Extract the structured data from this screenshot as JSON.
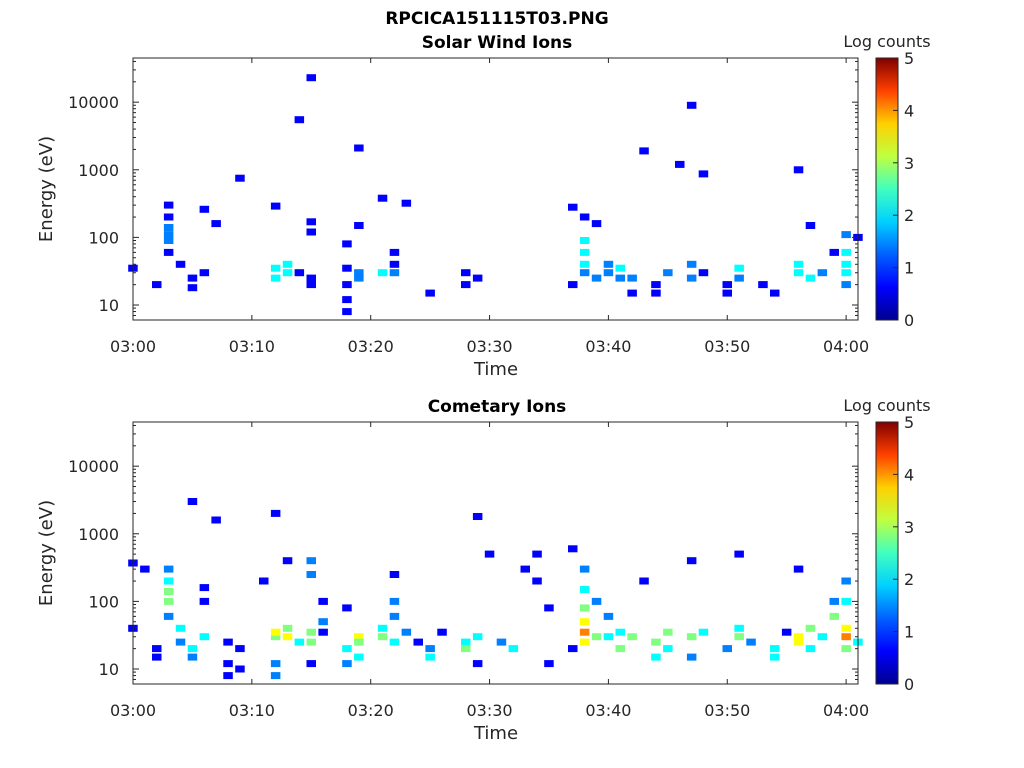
{
  "figure_title": "RPCICA151115T03.PNG",
  "colormap": [
    "#00008f",
    "#0000ff",
    "#0080ff",
    "#00ffff",
    "#80ff80",
    "#ffff00",
    "#ff8000",
    "#ff0000",
    "#800000"
  ],
  "chart_data": [
    {
      "type": "heatmap",
      "title": "Solar Wind Ions",
      "xlabel": "Time",
      "ylabel": "Energy (eV)",
      "xlim": [
        "03:00",
        "04:01"
      ],
      "ylim": [
        6,
        45000
      ],
      "yscale": "log",
      "xticks": [
        "03:00",
        "03:10",
        "03:20",
        "03:30",
        "03:40",
        "03:50",
        "04:00"
      ],
      "yticks": [
        "10",
        "100",
        "1000",
        "10000"
      ],
      "colorbar": {
        "label": "Log counts",
        "range": [
          0,
          5
        ],
        "ticks": [
          "0",
          "1",
          "2",
          "3",
          "4",
          "5"
        ]
      },
      "cells": [
        {
          "t": "03:00",
          "e": 35,
          "v": 0.5
        },
        {
          "t": "03:02",
          "e": 20,
          "v": 0.5
        },
        {
          "t": "03:03",
          "e": 300,
          "v": 0.6
        },
        {
          "t": "03:03",
          "e": 200,
          "v": 0.8
        },
        {
          "t": "03:03",
          "e": 140,
          "v": 1.5
        },
        {
          "t": "03:03",
          "e": 110,
          "v": 1.4
        },
        {
          "t": "03:03",
          "e": 90,
          "v": 1.0
        },
        {
          "t": "03:03",
          "e": 60,
          "v": 0.6
        },
        {
          "t": "03:04",
          "e": 40,
          "v": 0.5
        },
        {
          "t": "03:05",
          "e": 25,
          "v": 0.5
        },
        {
          "t": "03:05",
          "e": 18,
          "v": 0.5
        },
        {
          "t": "03:06",
          "e": 30,
          "v": 0.6
        },
        {
          "t": "03:06",
          "e": 260,
          "v": 0.5
        },
        {
          "t": "03:07",
          "e": 160,
          "v": 0.5
        },
        {
          "t": "03:09",
          "e": 750,
          "v": 0.5
        },
        {
          "t": "03:12",
          "e": 290,
          "v": 0.5
        },
        {
          "t": "03:12",
          "e": 25,
          "v": 1.6
        },
        {
          "t": "03:12",
          "e": 35,
          "v": 1.8
        },
        {
          "t": "03:13",
          "e": 30,
          "v": 2.0
        },
        {
          "t": "03:13",
          "e": 40,
          "v": 1.7
        },
        {
          "t": "03:14",
          "e": 5500,
          "v": 0.5
        },
        {
          "t": "03:14",
          "e": 30,
          "v": 0.8
        },
        {
          "t": "03:15",
          "e": 23000,
          "v": 0.5
        },
        {
          "t": "03:15",
          "e": 170,
          "v": 0.6
        },
        {
          "t": "03:15",
          "e": 120,
          "v": 0.5
        },
        {
          "t": "03:15",
          "e": 25,
          "v": 0.7
        },
        {
          "t": "03:15",
          "e": 20,
          "v": 0.5
        },
        {
          "t": "03:18",
          "e": 80,
          "v": 0.5
        },
        {
          "t": "03:18",
          "e": 35,
          "v": 0.6
        },
        {
          "t": "03:18",
          "e": 20,
          "v": 0.5
        },
        {
          "t": "03:18",
          "e": 12,
          "v": 0.5
        },
        {
          "t": "03:18",
          "e": 8,
          "v": 0.5
        },
        {
          "t": "03:19",
          "e": 30,
          "v": 1.4
        },
        {
          "t": "03:19",
          "e": 25,
          "v": 1.2
        },
        {
          "t": "03:19",
          "e": 150,
          "v": 0.5
        },
        {
          "t": "03:19",
          "e": 2100,
          "v": 0.5
        },
        {
          "t": "03:21",
          "e": 30,
          "v": 1.7
        },
        {
          "t": "03:21",
          "e": 380,
          "v": 0.5
        },
        {
          "t": "03:22",
          "e": 30,
          "v": 1.2
        },
        {
          "t": "03:22",
          "e": 60,
          "v": 0.5
        },
        {
          "t": "03:22",
          "e": 40,
          "v": 0.8
        },
        {
          "t": "03:23",
          "e": 320,
          "v": 0.5
        },
        {
          "t": "03:25",
          "e": 15,
          "v": 0.5
        },
        {
          "t": "03:28",
          "e": 30,
          "v": 0.5
        },
        {
          "t": "03:28",
          "e": 20,
          "v": 0.8
        },
        {
          "t": "03:29",
          "e": 25,
          "v": 0.6
        },
        {
          "t": "03:37",
          "e": 20,
          "v": 0.5
        },
        {
          "t": "03:37",
          "e": 280,
          "v": 0.6
        },
        {
          "t": "03:38",
          "e": 200,
          "v": 0.6
        },
        {
          "t": "03:38",
          "e": 90,
          "v": 1.6
        },
        {
          "t": "03:38",
          "e": 60,
          "v": 1.8
        },
        {
          "t": "03:38",
          "e": 40,
          "v": 2.0
        },
        {
          "t": "03:38",
          "e": 30,
          "v": 1.4
        },
        {
          "t": "03:39",
          "e": 160,
          "v": 0.5
        },
        {
          "t": "03:39",
          "e": 25,
          "v": 1.0
        },
        {
          "t": "03:40",
          "e": 40,
          "v": 1.4
        },
        {
          "t": "03:40",
          "e": 30,
          "v": 1.3
        },
        {
          "t": "03:41",
          "e": 35,
          "v": 1.8
        },
        {
          "t": "03:41",
          "e": 25,
          "v": 1.4
        },
        {
          "t": "03:42",
          "e": 25,
          "v": 1.0
        },
        {
          "t": "03:42",
          "e": 15,
          "v": 0.6
        },
        {
          "t": "03:43",
          "e": 1900,
          "v": 0.5
        },
        {
          "t": "03:44",
          "e": 20,
          "v": 0.8
        },
        {
          "t": "03:44",
          "e": 15,
          "v": 0.5
        },
        {
          "t": "03:45",
          "e": 30,
          "v": 1.2
        },
        {
          "t": "03:46",
          "e": 1200,
          "v": 0.5
        },
        {
          "t": "03:47",
          "e": 9000,
          "v": 0.5
        },
        {
          "t": "03:47",
          "e": 40,
          "v": 1.2
        },
        {
          "t": "03:47",
          "e": 25,
          "v": 1.0
        },
        {
          "t": "03:48",
          "e": 870,
          "v": 0.5
        },
        {
          "t": "03:48",
          "e": 30,
          "v": 0.7
        },
        {
          "t": "03:50",
          "e": 20,
          "v": 0.5
        },
        {
          "t": "03:50",
          "e": 15,
          "v": 0.5
        },
        {
          "t": "03:51",
          "e": 35,
          "v": 1.6
        },
        {
          "t": "03:51",
          "e": 25,
          "v": 1.0
        },
        {
          "t": "03:53",
          "e": 20,
          "v": 0.6
        },
        {
          "t": "03:54",
          "e": 15,
          "v": 0.5
        },
        {
          "t": "03:56",
          "e": 1000,
          "v": 0.5
        },
        {
          "t": "03:56",
          "e": 40,
          "v": 1.8
        },
        {
          "t": "03:56",
          "e": 30,
          "v": 2.0
        },
        {
          "t": "03:57",
          "e": 25,
          "v": 1.6
        },
        {
          "t": "03:57",
          "e": 150,
          "v": 0.5
        },
        {
          "t": "03:58",
          "e": 30,
          "v": 1.0
        },
        {
          "t": "03:59",
          "e": 60,
          "v": 0.8
        },
        {
          "t": "04:00",
          "e": 110,
          "v": 1.2
        },
        {
          "t": "04:00",
          "e": 60,
          "v": 1.6
        },
        {
          "t": "04:00",
          "e": 40,
          "v": 2.1
        },
        {
          "t": "04:00",
          "e": 30,
          "v": 1.8
        },
        {
          "t": "04:00",
          "e": 20,
          "v": 1.2
        },
        {
          "t": "04:01",
          "e": 100,
          "v": 0.5
        }
      ]
    },
    {
      "type": "heatmap",
      "title": "Cometary Ions",
      "xlabel": "Time",
      "ylabel": "Energy (eV)",
      "xlim": [
        "03:00",
        "04:01"
      ],
      "ylim": [
        6,
        45000
      ],
      "yscale": "log",
      "xticks": [
        "03:00",
        "03:10",
        "03:20",
        "03:30",
        "03:40",
        "03:50",
        "04:00"
      ],
      "yticks": [
        "10",
        "100",
        "1000",
        "10000"
      ],
      "colorbar": {
        "label": "Log counts",
        "range": [
          0,
          5
        ],
        "ticks": [
          "0",
          "1",
          "2",
          "3",
          "4",
          "5"
        ]
      },
      "cells": [
        {
          "t": "03:00",
          "e": 370,
          "v": 0.5
        },
        {
          "t": "03:01",
          "e": 300,
          "v": 0.5
        },
        {
          "t": "03:00",
          "e": 40,
          "v": 0.5
        },
        {
          "t": "03:02",
          "e": 20,
          "v": 0.6
        },
        {
          "t": "03:02",
          "e": 15,
          "v": 0.5
        },
        {
          "t": "03:03",
          "e": 300,
          "v": 1.0
        },
        {
          "t": "03:03",
          "e": 200,
          "v": 1.6
        },
        {
          "t": "03:03",
          "e": 140,
          "v": 2.4
        },
        {
          "t": "03:03",
          "e": 100,
          "v": 2.2
        },
        {
          "t": "03:03",
          "e": 60,
          "v": 1.2
        },
        {
          "t": "03:04",
          "e": 40,
          "v": 1.8
        },
        {
          "t": "03:04",
          "e": 25,
          "v": 1.5
        },
        {
          "t": "03:05",
          "e": 3000,
          "v": 0.5
        },
        {
          "t": "03:05",
          "e": 20,
          "v": 1.7
        },
        {
          "t": "03:05",
          "e": 15,
          "v": 1.3
        },
        {
          "t": "03:06",
          "e": 30,
          "v": 2.0
        },
        {
          "t": "03:06",
          "e": 160,
          "v": 0.8
        },
        {
          "t": "03:06",
          "e": 100,
          "v": 0.6
        },
        {
          "t": "03:07",
          "e": 1600,
          "v": 0.5
        },
        {
          "t": "03:08",
          "e": 25,
          "v": 0.5
        },
        {
          "t": "03:08",
          "e": 12,
          "v": 0.5
        },
        {
          "t": "03:08",
          "e": 8,
          "v": 0.5
        },
        {
          "t": "03:09",
          "e": 20,
          "v": 0.6
        },
        {
          "t": "03:09",
          "e": 10,
          "v": 0.5
        },
        {
          "t": "03:11",
          "e": 200,
          "v": 0.6
        },
        {
          "t": "03:12",
          "e": 2000,
          "v": 0.5
        },
        {
          "t": "03:12",
          "e": 30,
          "v": 2.6
        },
        {
          "t": "03:12",
          "e": 35,
          "v": 3.2
        },
        {
          "t": "03:13",
          "e": 30,
          "v": 3.4
        },
        {
          "t": "03:13",
          "e": 40,
          "v": 2.5
        },
        {
          "t": "03:12",
          "e": 12,
          "v": 1.5
        },
        {
          "t": "03:12",
          "e": 8,
          "v": 1.2
        },
        {
          "t": "03:13",
          "e": 400,
          "v": 0.6
        },
        {
          "t": "03:14",
          "e": 25,
          "v": 1.8
        },
        {
          "t": "03:15",
          "e": 400,
          "v": 1.5
        },
        {
          "t": "03:15",
          "e": 250,
          "v": 1.0
        },
        {
          "t": "03:15",
          "e": 35,
          "v": 2.6
        },
        {
          "t": "03:15",
          "e": 25,
          "v": 2.4
        },
        {
          "t": "03:15",
          "e": 12,
          "v": 0.8
        },
        {
          "t": "03:16",
          "e": 100,
          "v": 0.8
        },
        {
          "t": "03:16",
          "e": 50,
          "v": 1.2
        },
        {
          "t": "03:16",
          "e": 35,
          "v": 0.8
        },
        {
          "t": "03:18",
          "e": 80,
          "v": 0.7
        },
        {
          "t": "03:18",
          "e": 20,
          "v": 1.6
        },
        {
          "t": "03:18",
          "e": 12,
          "v": 1.2
        },
        {
          "t": "03:19",
          "e": 30,
          "v": 3.4
        },
        {
          "t": "03:19",
          "e": 25,
          "v": 2.8
        },
        {
          "t": "03:19",
          "e": 15,
          "v": 1.6
        },
        {
          "t": "03:21",
          "e": 30,
          "v": 2.4
        },
        {
          "t": "03:21",
          "e": 40,
          "v": 2.0
        },
        {
          "t": "03:22",
          "e": 60,
          "v": 1.2
        },
        {
          "t": "03:22",
          "e": 100,
          "v": 1.0
        },
        {
          "t": "03:22",
          "e": 250,
          "v": 0.8
        },
        {
          "t": "03:22",
          "e": 25,
          "v": 1.8
        },
        {
          "t": "03:23",
          "e": 35,
          "v": 1.4
        },
        {
          "t": "03:24",
          "e": 25,
          "v": 0.8
        },
        {
          "t": "03:25",
          "e": 20,
          "v": 1.4
        },
        {
          "t": "03:25",
          "e": 15,
          "v": 1.6
        },
        {
          "t": "03:26",
          "e": 35,
          "v": 0.5
        },
        {
          "t": "03:28",
          "e": 25,
          "v": 1.8
        },
        {
          "t": "03:28",
          "e": 20,
          "v": 2.4
        },
        {
          "t": "03:29",
          "e": 1800,
          "v": 0.5
        },
        {
          "t": "03:29",
          "e": 30,
          "v": 2.0
        },
        {
          "t": "03:29",
          "e": 12,
          "v": 0.8
        },
        {
          "t": "03:30",
          "e": 500,
          "v": 0.5
        },
        {
          "t": "03:31",
          "e": 25,
          "v": 1.5
        },
        {
          "t": "03:32",
          "e": 20,
          "v": 1.6
        },
        {
          "t": "03:33",
          "e": 300,
          "v": 0.6
        },
        {
          "t": "03:34",
          "e": 500,
          "v": 0.6
        },
        {
          "t": "03:34",
          "e": 200,
          "v": 0.8
        },
        {
          "t": "03:35",
          "e": 80,
          "v": 0.6
        },
        {
          "t": "03:35",
          "e": 12,
          "v": 0.5
        },
        {
          "t": "03:37",
          "e": 600,
          "v": 0.6
        },
        {
          "t": "03:37",
          "e": 20,
          "v": 0.6
        },
        {
          "t": "03:38",
          "e": 300,
          "v": 1.4
        },
        {
          "t": "03:38",
          "e": 150,
          "v": 1.8
        },
        {
          "t": "03:38",
          "e": 80,
          "v": 2.5
        },
        {
          "t": "03:38",
          "e": 50,
          "v": 3.2
        },
        {
          "t": "03:38",
          "e": 35,
          "v": 3.6
        },
        {
          "t": "03:38",
          "e": 25,
          "v": 3.2
        },
        {
          "t": "03:39",
          "e": 100,
          "v": 1.0
        },
        {
          "t": "03:39",
          "e": 30,
          "v": 2.4
        },
        {
          "t": "03:40",
          "e": 30,
          "v": 2.0
        },
        {
          "t": "03:40",
          "e": 60,
          "v": 1.4
        },
        {
          "t": "03:41",
          "e": 20,
          "v": 2.8
        },
        {
          "t": "03:41",
          "e": 35,
          "v": 2.0
        },
        {
          "t": "03:42",
          "e": 30,
          "v": 2.2
        },
        {
          "t": "03:43",
          "e": 200,
          "v": 0.6
        },
        {
          "t": "03:44",
          "e": 25,
          "v": 2.4
        },
        {
          "t": "03:44",
          "e": 15,
          "v": 2.0
        },
        {
          "t": "03:45",
          "e": 35,
          "v": 2.6
        },
        {
          "t": "03:45",
          "e": 20,
          "v": 1.6
        },
        {
          "t": "03:47",
          "e": 400,
          "v": 0.5
        },
        {
          "t": "03:47",
          "e": 30,
          "v": 2.2
        },
        {
          "t": "03:47",
          "e": 15,
          "v": 1.2
        },
        {
          "t": "03:48",
          "e": 35,
          "v": 1.6
        },
        {
          "t": "03:50",
          "e": 20,
          "v": 1.4
        },
        {
          "t": "03:51",
          "e": 500,
          "v": 0.5
        },
        {
          "t": "03:51",
          "e": 30,
          "v": 2.4
        },
        {
          "t": "03:51",
          "e": 40,
          "v": 1.8
        },
        {
          "t": "03:52",
          "e": 25,
          "v": 1.2
        },
        {
          "t": "03:54",
          "e": 20,
          "v": 1.6
        },
        {
          "t": "03:54",
          "e": 15,
          "v": 1.8
        },
        {
          "t": "03:55",
          "e": 35,
          "v": 0.6
        },
        {
          "t": "03:56",
          "e": 300,
          "v": 0.5
        },
        {
          "t": "03:56",
          "e": 30,
          "v": 3.4
        },
        {
          "t": "03:56",
          "e": 25,
          "v": 3.0
        },
        {
          "t": "03:57",
          "e": 40,
          "v": 2.6
        },
        {
          "t": "03:57",
          "e": 20,
          "v": 1.8
        },
        {
          "t": "03:58",
          "e": 30,
          "v": 2.0
        },
        {
          "t": "03:59",
          "e": 100,
          "v": 1.4
        },
        {
          "t": "03:59",
          "e": 60,
          "v": 2.2
        },
        {
          "t": "04:00",
          "e": 200,
          "v": 1.0
        },
        {
          "t": "04:00",
          "e": 100,
          "v": 2.0
        },
        {
          "t": "04:00",
          "e": 40,
          "v": 3.4
        },
        {
          "t": "04:00",
          "e": 30,
          "v": 3.6
        },
        {
          "t": "04:00",
          "e": 20,
          "v": 2.6
        },
        {
          "t": "04:01",
          "e": 25,
          "v": 2.0
        }
      ]
    }
  ]
}
